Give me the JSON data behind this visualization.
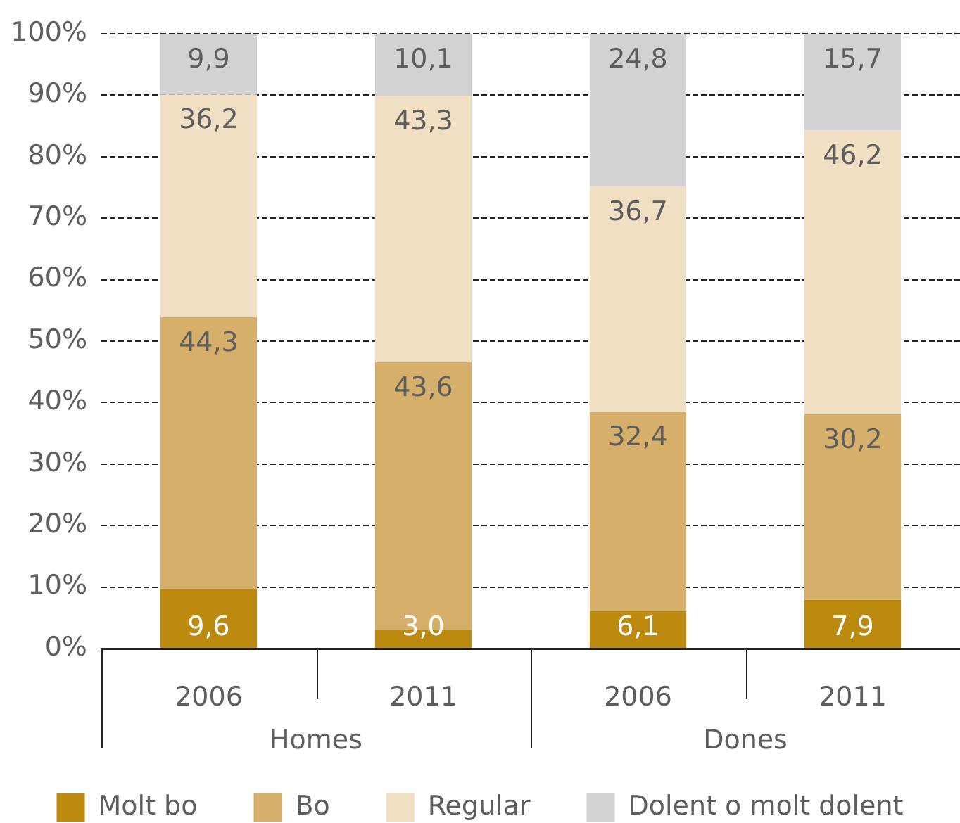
{
  "chart_data": {
    "type": "bar",
    "stacked": true,
    "categories": [
      "2006",
      "2011",
      "2006",
      "2011"
    ],
    "annotations": [
      "Homes",
      "Dones"
    ],
    "series": [
      {
        "name": "Molt bo",
        "color": "#bc8a0e",
        "values": [
          9.6,
          3.0,
          6.1,
          7.9
        ],
        "value_labels": [
          "9,6",
          "3,0",
          "6,1",
          "7,9"
        ]
      },
      {
        "name": "Bo",
        "color": "#d6b06a",
        "values": [
          44.3,
          43.6,
          32.4,
          30.2
        ],
        "value_labels": [
          "44,3",
          "43,6",
          "32,4",
          "30,2"
        ]
      },
      {
        "name": "Regular",
        "color": "#f0dfc3",
        "values": [
          36.2,
          43.3,
          36.7,
          46.2
        ],
        "value_labels": [
          "36,2",
          "43,3",
          "36,7",
          "46,2"
        ]
      },
      {
        "name": "Dolent o molt dolent",
        "color": "#d1d2d4",
        "values": [
          9.9,
          10.1,
          24.8,
          15.7
        ],
        "value_labels": [
          "9,9",
          "10,1",
          "24,8",
          "15,7"
        ]
      }
    ],
    "ylim": [
      0,
      100
    ],
    "yticks": [
      {
        "value": 0,
        "label": "0%"
      },
      {
        "value": 10,
        "label": "10%"
      },
      {
        "value": 20,
        "label": "20%"
      },
      {
        "value": 30,
        "label": "30%"
      },
      {
        "value": 40,
        "label": "40%"
      },
      {
        "value": 50,
        "label": "50%"
      },
      {
        "value": 60,
        "label": "60%"
      },
      {
        "value": 70,
        "label": "70%"
      },
      {
        "value": 80,
        "label": "80%"
      },
      {
        "value": 90,
        "label": "90%"
      },
      {
        "value": 100,
        "label": "100%"
      }
    ],
    "grid": "y",
    "legend": "bottom"
  }
}
